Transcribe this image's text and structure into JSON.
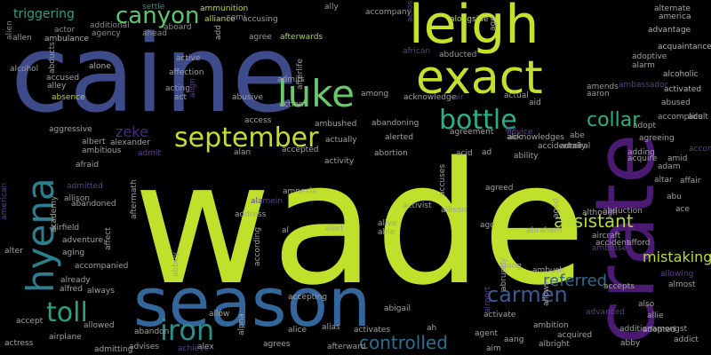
{
  "words": [
    {
      "text": "wade",
      "color": "#bfe12b"
    },
    {
      "text": "caine",
      "color": "#3e4b8a"
    },
    {
      "text": "crate",
      "color": "#4b1a73"
    },
    {
      "text": "season",
      "color": "#33669a"
    },
    {
      "text": "leigh",
      "color": "#c7e02a"
    },
    {
      "text": "exact",
      "color": "#c6df2c"
    },
    {
      "text": "hyena",
      "color": "#2c7f8d"
    },
    {
      "text": "luke",
      "color": "#69c96a"
    },
    {
      "text": "bottle",
      "color": "#27b08a"
    },
    {
      "text": "september",
      "color": "#c3df2d"
    },
    {
      "text": "canyon",
      "color": "#5fc56e"
    },
    {
      "text": "iron",
      "color": "#2b8f89"
    },
    {
      "text": "toll",
      "color": "#2aa182"
    },
    {
      "text": "carmen",
      "color": "#3a5a93"
    },
    {
      "text": "assistant",
      "color": "#b2dc33"
    },
    {
      "text": "controlled",
      "color": "#2e6e8e"
    },
    {
      "text": "referred",
      "color": "#2f6a8e"
    },
    {
      "text": "collar",
      "color": "#2bb07e"
    },
    {
      "text": "mistaking",
      "color": "#b8dd33"
    },
    {
      "text": "zeke",
      "color": "#462d7c"
    },
    {
      "text": "triggering",
      "color": "#2e9e88"
    },
    {
      "text": "settle",
      "color": "#3a8a8b"
    },
    {
      "text": "ammunition",
      "color": "#b9de2a"
    },
    {
      "text": "alliance",
      "color": "#c0df2a"
    },
    {
      "text": "ally",
      "color": "#9a9a9a"
    },
    {
      "text": "accompany",
      "color": "#9a9a9a"
    },
    {
      "text": "alongside",
      "color": "#b0da3a"
    },
    {
      "text": "alternate",
      "color": "#a8a8a8"
    },
    {
      "text": "america",
      "color": "#a8a8a8"
    },
    {
      "text": "actor",
      "color": "#8a8a8a"
    },
    {
      "text": "additional",
      "color": "#8a8a8a"
    },
    {
      "text": "agency",
      "color": "#8a8a8a"
    },
    {
      "text": "aboard",
      "color": "#8a8a8a"
    },
    {
      "text": "ahead",
      "color": "#8a8a8a"
    },
    {
      "text": "ambulance",
      "color": "#b0b0b0"
    },
    {
      "text": "allen",
      "color": "#9a9a9a"
    },
    {
      "text": "alien",
      "color": "#8a8a8a"
    },
    {
      "text": "agree",
      "color": "#9a9a9a"
    },
    {
      "text": "afterwards",
      "color": "#a6da3d"
    },
    {
      "text": "accusing",
      "color": "#9a9a9a"
    },
    {
      "text": "semi",
      "color": "#8a8a8a"
    },
    {
      "text": "african",
      "color": "#5b3f8c"
    },
    {
      "text": "abducted",
      "color": "#9a9a9a"
    },
    {
      "text": "advantage",
      "color": "#b0b0b0"
    },
    {
      "text": "acquaintance",
      "color": "#b0b0b0"
    },
    {
      "text": "alcoholic",
      "color": "#b0b0b0"
    },
    {
      "text": "adoptive",
      "color": "#a0a0a0"
    },
    {
      "text": "alarm",
      "color": "#a0a0a0"
    },
    {
      "text": "activated",
      "color": "#b0b0b0"
    },
    {
      "text": "amends",
      "color": "#9a9a9a"
    },
    {
      "text": "aaron",
      "color": "#9a9a9a"
    },
    {
      "text": "alcohol",
      "color": "#9a9a9a"
    },
    {
      "text": "alone",
      "color": "#b0b0b0"
    },
    {
      "text": "accused",
      "color": "#a0a0a0"
    },
    {
      "text": "alley",
      "color": "#a0a0a0"
    },
    {
      "text": "absence",
      "color": "#b9d431"
    },
    {
      "text": "abducts",
      "color": "#9a9a9a"
    },
    {
      "text": "affection",
      "color": "#a0a0a0"
    },
    {
      "text": "active",
      "color": "#a0a0a0"
    },
    {
      "text": "acting",
      "color": "#a0a0a0"
    },
    {
      "text": "act",
      "color": "#a0a0a0"
    },
    {
      "text": "abusive",
      "color": "#a0a0a0"
    },
    {
      "text": "admits",
      "color": "#a0a0a0"
    },
    {
      "text": "action",
      "color": "#a0a0a0"
    },
    {
      "text": "afterlife",
      "color": "#a0a0a0"
    },
    {
      "text": "among",
      "color": "#a0a0a0"
    },
    {
      "text": "acknowledge",
      "color": "#a0a0a0"
    },
    {
      "text": "actual",
      "color": "#a0a0a0"
    },
    {
      "text": "aid",
      "color": "#a0a0a0"
    },
    {
      "text": "abused",
      "color": "#a0a0a0"
    },
    {
      "text": "adopt",
      "color": "#a0a0a0"
    },
    {
      "text": "accomplice",
      "color": "#a0a0a0"
    },
    {
      "text": "adult",
      "color": "#a0a0a0"
    },
    {
      "text": "aggressive",
      "color": "#a0a0a0"
    },
    {
      "text": "albert",
      "color": "#a0a0a0"
    },
    {
      "text": "alexander",
      "color": "#a0a0a0"
    },
    {
      "text": "ambitious",
      "color": "#a0a0a0"
    },
    {
      "text": "admit",
      "color": "#5b3f8c"
    },
    {
      "text": "actually",
      "color": "#a0a0a0"
    },
    {
      "text": "accepted",
      "color": "#a0a0a0"
    },
    {
      "text": "ambushed",
      "color": "#a0a0a0"
    },
    {
      "text": "access",
      "color": "#a0a0a0"
    },
    {
      "text": "abandoning",
      "color": "#a0a0a0"
    },
    {
      "text": "agreement",
      "color": "#a0a0a0"
    },
    {
      "text": "advice",
      "color": "#5b3f8c"
    },
    {
      "text": "alec",
      "color": "#a0a0a0"
    },
    {
      "text": "abe",
      "color": "#a0a0a0"
    },
    {
      "text": "agreeing",
      "color": "#a0a0a0"
    },
    {
      "text": "acknowledges",
      "color": "#a0a0a0"
    },
    {
      "text": "accidentally",
      "color": "#a0a0a0"
    },
    {
      "text": "admiral",
      "color": "#a0a0a0"
    },
    {
      "text": "accompanies",
      "color": "#5b3f8c"
    },
    {
      "text": "amid",
      "color": "#a0a0a0"
    },
    {
      "text": "adam",
      "color": "#a0a0a0"
    },
    {
      "text": "adding",
      "color": "#a0a0a0"
    },
    {
      "text": "afraid",
      "color": "#a0a0a0"
    },
    {
      "text": "alan",
      "color": "#a0a0a0"
    },
    {
      "text": "activity",
      "color": "#a0a0a0"
    },
    {
      "text": "abortion",
      "color": "#a0a0a0"
    },
    {
      "text": "acid",
      "color": "#a0a0a0"
    },
    {
      "text": "ad",
      "color": "#a0a0a0"
    },
    {
      "text": "ability",
      "color": "#a0a0a0"
    },
    {
      "text": "alerted",
      "color": "#a0a0a0"
    },
    {
      "text": "acquire",
      "color": "#a0a0a0"
    },
    {
      "text": "affair",
      "color": "#a0a0a0"
    },
    {
      "text": "altar",
      "color": "#a0a0a0"
    },
    {
      "text": "abu",
      "color": "#a0a0a0"
    },
    {
      "text": "abandoned",
      "color": "#a0a0a0"
    },
    {
      "text": "admitted",
      "color": "#5b3f8c"
    },
    {
      "text": "allison",
      "color": "#a0a0a0"
    },
    {
      "text": "academy",
      "color": "#a0a0a0"
    },
    {
      "text": "american",
      "color": "#5b3f8c"
    },
    {
      "text": "alamein",
      "color": "#5b3f8c"
    },
    {
      "text": "amnesia",
      "color": "#a0a0a0"
    },
    {
      "text": "activist",
      "color": "#a0a0a0"
    },
    {
      "text": "accuses",
      "color": "#a0a0a0"
    },
    {
      "text": "agreed",
      "color": "#a0a0a0"
    },
    {
      "text": "aged",
      "color": "#a0a0a0"
    },
    {
      "text": "abduction",
      "color": "#a0a0a0"
    },
    {
      "text": "although",
      "color": "#a0a0a0"
    },
    {
      "text": "ace",
      "color": "#a0a0a0"
    },
    {
      "text": "airfield",
      "color": "#a0a0a0"
    },
    {
      "text": "adventure",
      "color": "#a0a0a0"
    },
    {
      "text": "affect",
      "color": "#a0a0a0"
    },
    {
      "text": "aftermath",
      "color": "#a0a0a0"
    },
    {
      "text": "address",
      "color": "#a0a0a0"
    },
    {
      "text": "al",
      "color": "#a0a0a0"
    },
    {
      "text": "alert",
      "color": "#a0a0a0"
    },
    {
      "text": "alive",
      "color": "#a0a0a0"
    },
    {
      "text": "able",
      "color": "#a0a0a0"
    },
    {
      "text": "allison",
      "color": "#a0a0a0"
    },
    {
      "text": "ago",
      "color": "#a0a0a0"
    },
    {
      "text": "abraham",
      "color": "#a0a0a0"
    },
    {
      "text": "aircraft",
      "color": "#a0a0a0"
    },
    {
      "text": "accident",
      "color": "#a0a0a0"
    },
    {
      "text": "afford",
      "color": "#a0a0a0"
    },
    {
      "text": "ambrose",
      "color": "#5b3f8c"
    },
    {
      "text": "alter",
      "color": "#a0a0a0"
    },
    {
      "text": "aging",
      "color": "#a0a0a0"
    },
    {
      "text": "accompanied",
      "color": "#a0a0a0"
    },
    {
      "text": "already",
      "color": "#a0a0a0"
    },
    {
      "text": "alfred",
      "color": "#a0a0a0"
    },
    {
      "text": "always",
      "color": "#a0a0a0"
    },
    {
      "text": "abbey",
      "color": "#a0a0a0"
    },
    {
      "text": "according",
      "color": "#a0a0a0"
    },
    {
      "text": "accepting",
      "color": "#a0a0a0"
    },
    {
      "text": "along",
      "color": "#a0a0a0"
    },
    {
      "text": "ambush",
      "color": "#a0a0a0"
    },
    {
      "text": "abruptly",
      "color": "#a0a0a0"
    },
    {
      "text": "allowing",
      "color": "#5b3f8c"
    },
    {
      "text": "almost",
      "color": "#a0a0a0"
    },
    {
      "text": "accepts",
      "color": "#a0a0a0"
    },
    {
      "text": "also",
      "color": "#a0a0a0"
    },
    {
      "text": "allows",
      "color": "#a0a0a0"
    },
    {
      "text": "airport",
      "color": "#5b3f8c"
    },
    {
      "text": "advanced",
      "color": "#5b3f8c"
    },
    {
      "text": "allie",
      "color": "#a0a0a0"
    },
    {
      "text": "accept",
      "color": "#a0a0a0"
    },
    {
      "text": "allowed",
      "color": "#a0a0a0"
    },
    {
      "text": "allow",
      "color": "#a0a0a0"
    },
    {
      "text": "alias",
      "color": "#a0a0a0"
    },
    {
      "text": "abigail",
      "color": "#a0a0a0"
    },
    {
      "text": "activate",
      "color": "#a0a0a0"
    },
    {
      "text": "additionamongst",
      "color": "#a0a0a0"
    },
    {
      "text": "adopted",
      "color": "#a0a0a0"
    },
    {
      "text": "abby",
      "color": "#a0a0a0"
    },
    {
      "text": "addict",
      "color": "#a0a0a0"
    },
    {
      "text": "airplane",
      "color": "#a0a0a0"
    },
    {
      "text": "abandon",
      "color": "#a0a0a0"
    },
    {
      "text": "alpha",
      "color": "#a0a0a0"
    },
    {
      "text": "alice",
      "color": "#a0a0a0"
    },
    {
      "text": "activates",
      "color": "#a0a0a0"
    },
    {
      "text": "ah",
      "color": "#a0a0a0"
    },
    {
      "text": "ambition",
      "color": "#a0a0a0"
    },
    {
      "text": "agent",
      "color": "#a0a0a0"
    },
    {
      "text": "aang",
      "color": "#a0a0a0"
    },
    {
      "text": "acquired",
      "color": "#a0a0a0"
    },
    {
      "text": "aim",
      "color": "#a0a0a0"
    },
    {
      "text": "albright",
      "color": "#a0a0a0"
    },
    {
      "text": "actress",
      "color": "#a0a0a0"
    },
    {
      "text": "admitting",
      "color": "#a0a0a0"
    },
    {
      "text": "advises",
      "color": "#a0a0a0"
    },
    {
      "text": "achieve",
      "color": "#5b3f8c"
    },
    {
      "text": "alex",
      "color": "#a0a0a0"
    },
    {
      "text": "agrees",
      "color": "#a0a0a0"
    },
    {
      "text": "afterward",
      "color": "#a0a0a0"
    },
    {
      "text": "age",
      "color": "#a0a0a0"
    },
    {
      "text": "across",
      "color": "#5b3f8c"
    },
    {
      "text": "add",
      "color": "#a0a0a0"
    },
    {
      "text": "align",
      "color": "#5b3f8c"
    },
    {
      "text": "ambassador",
      "color": "#5b3f8c"
    },
    {
      "text": "air",
      "color": "#5b3f8c"
    },
    {
      "text": "all",
      "color": "#5b3f8c"
    },
    {
      "text": "accessories",
      "color": "#5b3f8c"
    }
  ]
}
